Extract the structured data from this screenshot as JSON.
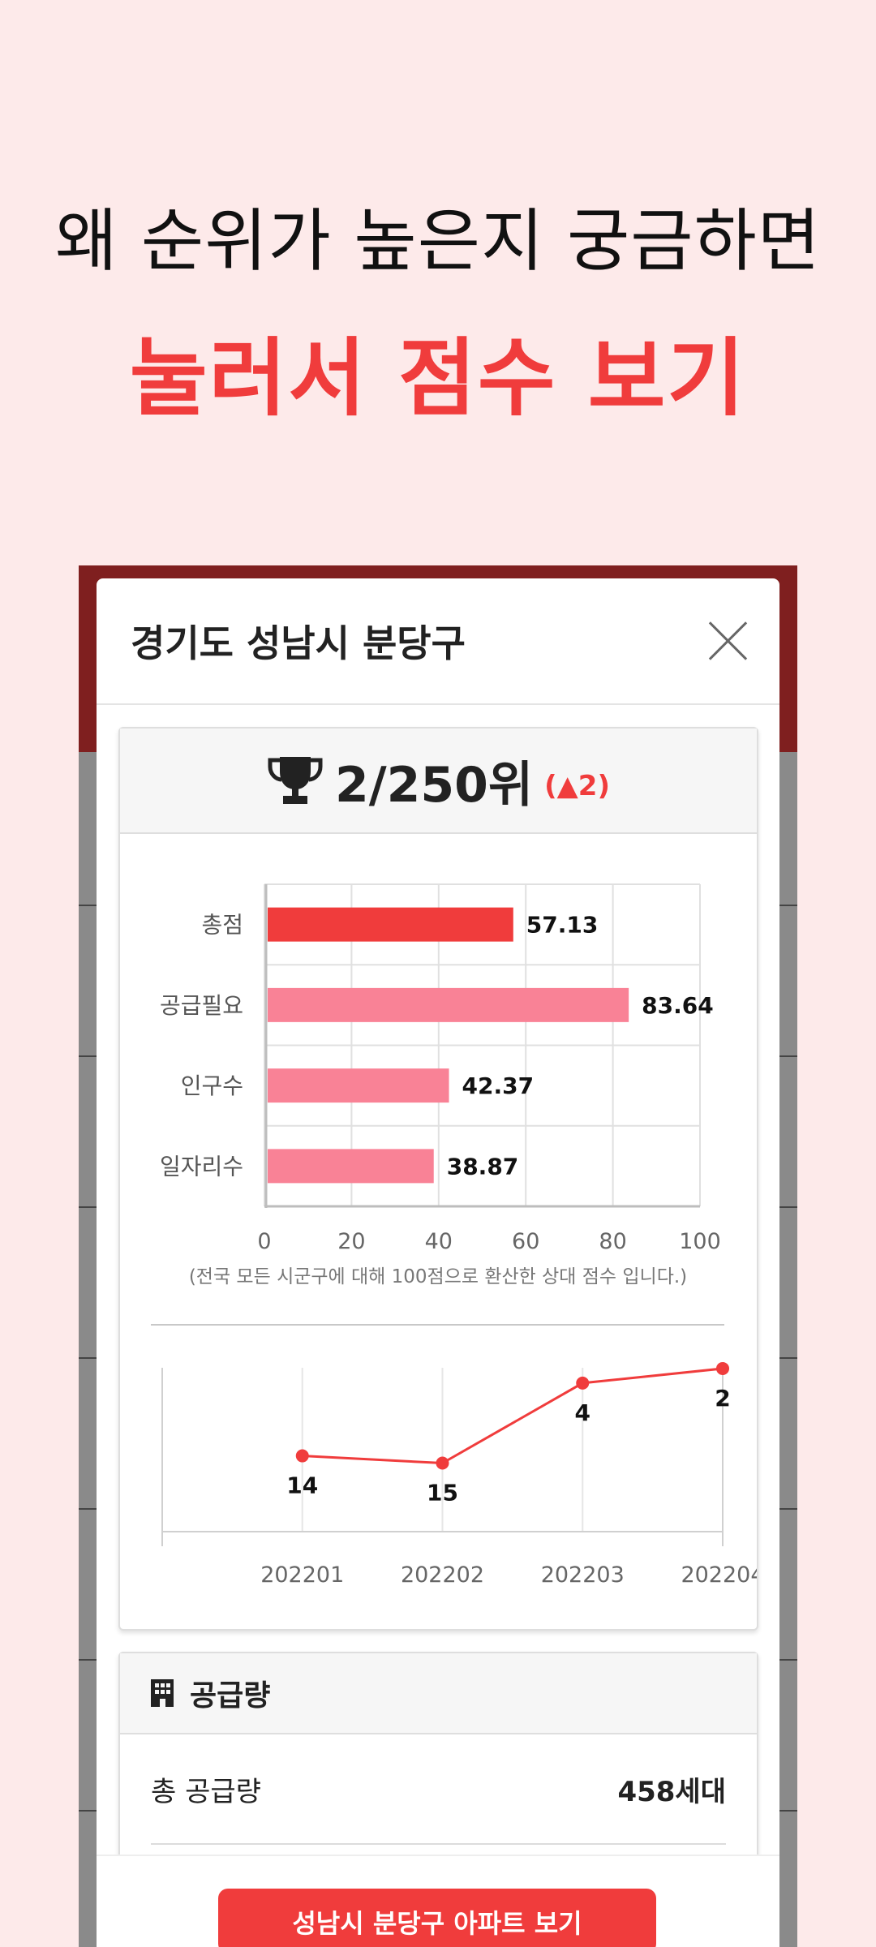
{
  "headline": {
    "line1": "왜 순위가 높은지 궁금하면",
    "line2": "눌러서 점수 보기"
  },
  "modal": {
    "title": "경기도 성남시 분당구",
    "close_icon": "close-icon"
  },
  "rank": {
    "icon": "trophy-icon",
    "value": "2/250위",
    "change": "(▲2)"
  },
  "colors": {
    "accent": "#f03c3c",
    "bar_primary": "#f03c3c",
    "bar_secondary": "#f98296",
    "headline_bg": "#fdeaea"
  },
  "chart_data": [
    {
      "type": "bar",
      "orientation": "horizontal",
      "categories": [
        "총점",
        "공급필요",
        "인구수",
        "일자리수"
      ],
      "values": [
        57.13,
        83.64,
        42.37,
        38.87
      ],
      "value_labels": [
        "57.13",
        "83.64",
        "42.37",
        "38.87"
      ],
      "xlim": [
        0,
        100
      ],
      "xticks": [
        "0",
        "20",
        "40",
        "60",
        "80",
        "100"
      ],
      "note": "(전국 모든 시군구에 대해 100점으로 환산한 상대 점수 입니다.)",
      "grid": true
    },
    {
      "type": "line",
      "x": [
        "202201",
        "202202",
        "202203",
        "202204"
      ],
      "values": [
        14,
        15,
        4,
        2
      ],
      "value_labels": [
        "14",
        "15",
        "4",
        "2"
      ],
      "y_inverted": true,
      "grid": true
    }
  ],
  "supply": {
    "icon": "building-icon",
    "title": "공급량",
    "rows": [
      {
        "label": "총 공급량",
        "value": "458세대"
      }
    ]
  },
  "cta": {
    "label": "성남시 분당구 아파트 보기"
  }
}
